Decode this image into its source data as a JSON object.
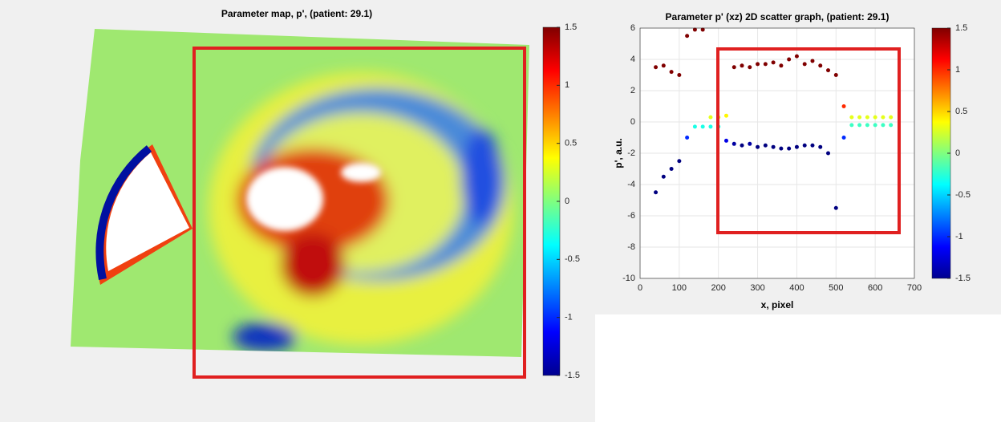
{
  "chart_data": [
    {
      "type": "image",
      "title": "Parameter map, p', (patient: 29.1)",
      "colormap": "jet",
      "clim": [
        -1.5,
        1.5
      ],
      "cticks": [
        1.5,
        1,
        0.5,
        0,
        -0.5,
        -1,
        -1.5
      ]
    },
    {
      "type": "scatter",
      "title": "Parameter p' (xz) 2D scatter graph, (patient: 29.1)",
      "x_label": "x, pixel",
      "y_label": "p', a.u.",
      "x": [
        40,
        60,
        80,
        100,
        120,
        140,
        160,
        180,
        200,
        220,
        240,
        260,
        280,
        300,
        320,
        340,
        360,
        380,
        400,
        420,
        440,
        460,
        480,
        500,
        520,
        540,
        560,
        580,
        600,
        620,
        640,
        40,
        60,
        80,
        100,
        120,
        140,
        160,
        180,
        200,
        220,
        240,
        260,
        280,
        300,
        320,
        340,
        360,
        380,
        400,
        420,
        440,
        460,
        480,
        500,
        520,
        540,
        560,
        580,
        600,
        620,
        640
      ],
      "values": [
        3.5,
        3.6,
        3.2,
        3,
        5.5,
        5.9,
        5.9,
        0.3,
        0.3,
        0.4,
        3.5,
        3.6,
        3.5,
        3.7,
        3.7,
        3.8,
        3.6,
        4,
        4.2,
        3.7,
        3.9,
        3.6,
        3.3,
        3,
        1,
        0.3,
        0.3,
        0.3,
        0.3,
        0.3,
        0.3,
        -4.5,
        -3.5,
        -3,
        -2.5,
        -1,
        -0.3,
        -0.3,
        -0.3,
        -0.3,
        -1.2,
        -1.4,
        -1.5,
        -1.4,
        -1.6,
        -1.5,
        -1.6,
        -1.7,
        -1.7,
        -1.6,
        -1.5,
        -1.5,
        -1.6,
        -2,
        -5.5,
        -1,
        -0.2,
        -0.2,
        -0.2,
        -0.2,
        -0.2,
        -0.2
      ],
      "xlim": [
        0,
        700
      ],
      "ylim": [
        -10,
        6
      ],
      "xticks": [
        0,
        100,
        200,
        300,
        400,
        500,
        600,
        700
      ],
      "yticks": [
        -10,
        -8,
        -6,
        -4,
        -2,
        0,
        2,
        4,
        6
      ],
      "grid": true,
      "colormap": "jet",
      "clim": [
        -1.5,
        1.5
      ],
      "cticks": [
        1.5,
        1,
        0.5,
        0,
        -0.5,
        -1,
        -1.5
      ]
    }
  ]
}
